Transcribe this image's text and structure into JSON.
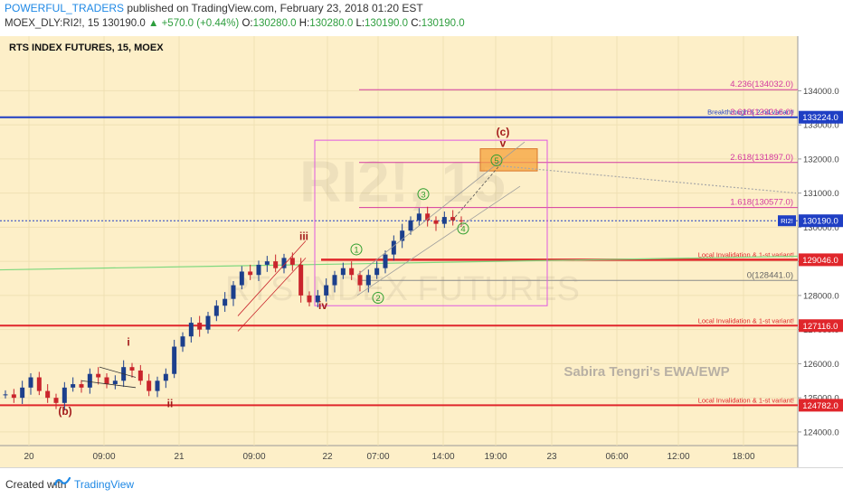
{
  "header": {
    "author": "POWERFUL_TRADERS",
    "published": "published on TradingView.com, February 23, 2018 01:20 EST",
    "symbol": "MOEX_DLY:RI2!, 15",
    "last": "130190.0",
    "change": "▲ +570.0 (+0.44%)",
    "o_label": "O:",
    "o_value": "130280.0",
    "h_label": "H:",
    "h_value": "130280.0",
    "l_label": "L:",
    "l_value": "130190.0",
    "c_label": "C:",
    "c_value": "130190.0"
  },
  "footer": {
    "created_with": "Created with",
    "brand": "TradingView"
  },
  "colors": {
    "background": "#fdefc8",
    "candle_up": "#1c3f8c",
    "candle_down": "#c9252c",
    "red_level": "#e0262b",
    "blue_level": "#1f3fc4",
    "fib_pink": "#d43aa0",
    "wave_green": "#2e9e2e",
    "wave_red": "#a31b1b",
    "box_orange": "#f6a23a"
  },
  "chart_data": {
    "type": "candlestick",
    "title": "RTS INDEX FUTURES, 15, MOEX",
    "watermark_symbol": "RI2!, 15",
    "watermark_name": "RTS INDEX FUTURES",
    "signature": "Sabira Tengri's EWA/EWP",
    "x_ticks": [
      "20",
      "09:00",
      "21",
      "09:00",
      "22",
      "07:00",
      "14:00",
      "19:00",
      "23",
      "06:00",
      "12:00",
      "18:00"
    ],
    "y_ticks": [
      "124000.0",
      "125000.0",
      "126000.0",
      "127000.0",
      "128000.0",
      "129000.0",
      "130000.0",
      "131000.0",
      "132000.0",
      "133000.0",
      "134000.0"
    ],
    "ylim": [
      123600,
      135600
    ],
    "price_tags": [
      {
        "text": "133224.0",
        "value": 133224,
        "color": "#1f3fc4"
      },
      {
        "text": "130190.0",
        "value": 130190,
        "color": "#1f3fc4"
      },
      {
        "text": "129046.0",
        "value": 129046,
        "color": "#e0262b"
      },
      {
        "text": "127116.0",
        "value": 127116,
        "color": "#e0262b"
      },
      {
        "text": "124782.0",
        "value": 124782,
        "color": "#e0262b"
      }
    ],
    "levels": [
      {
        "value": 133224,
        "label": "Breakthrough & 2-nd variant!"
      },
      {
        "value": 129046,
        "label": "Local Invalidation & 1-st variant!"
      },
      {
        "value": 127116,
        "label": "Local Invalidation & 1-st variant!"
      },
      {
        "value": 124782,
        "label": "Local Invalidation & 1-st variant!"
      }
    ],
    "current_price": {
      "value": 130190,
      "label": "RI2!"
    },
    "fib_levels": [
      {
        "label": "4.236(134032.0)",
        "value": 134032
      },
      {
        "label": "3.618(133216.0)",
        "value": 133216
      },
      {
        "label": "2.618(131897.0)",
        "value": 131897
      },
      {
        "label": "1.618(130577.0)",
        "value": 130577
      },
      {
        "label": "0(128441.0)",
        "value": 128441
      }
    ],
    "wave_labels": [
      {
        "text": "(b)",
        "color": "red"
      },
      {
        "text": "i",
        "color": "red"
      },
      {
        "text": "ii",
        "color": "red"
      },
      {
        "text": "iii",
        "color": "red"
      },
      {
        "text": "iv",
        "color": "red"
      },
      {
        "text": "v",
        "color": "red"
      },
      {
        "text": "(c)",
        "color": "red"
      },
      {
        "text": "1",
        "color": "green"
      },
      {
        "text": "2",
        "color": "green"
      },
      {
        "text": "3",
        "color": "green"
      },
      {
        "text": "4",
        "color": "green"
      },
      {
        "text": "5",
        "color": "green"
      }
    ],
    "price_path": [
      [
        0,
        125100
      ],
      [
        1,
        125000
      ],
      [
        2,
        125300
      ],
      [
        3,
        125600
      ],
      [
        4,
        125200
      ],
      [
        5,
        125000
      ],
      [
        6,
        124850
      ],
      [
        7,
        125300
      ],
      [
        8,
        125400
      ],
      [
        9,
        125300
      ],
      [
        10,
        125700
      ],
      [
        11,
        125600
      ],
      [
        12,
        125400
      ],
      [
        13,
        125500
      ],
      [
        14,
        125900
      ],
      [
        15,
        125800
      ],
      [
        16,
        125500
      ],
      [
        17,
        125200
      ],
      [
        18,
        125500
      ],
      [
        19,
        125700
      ],
      [
        20,
        126500
      ],
      [
        21,
        126800
      ],
      [
        22,
        127200
      ],
      [
        23,
        127000
      ],
      [
        24,
        127400
      ],
      [
        25,
        127700
      ],
      [
        26,
        127900
      ],
      [
        27,
        128300
      ],
      [
        28,
        128700
      ],
      [
        29,
        128600
      ],
      [
        30,
        128900
      ],
      [
        31,
        129000
      ],
      [
        32,
        128800
      ],
      [
        33,
        129100
      ],
      [
        34,
        128900
      ],
      [
        35,
        128000
      ],
      [
        36,
        127800
      ],
      [
        37,
        128000
      ],
      [
        38,
        128300
      ],
      [
        39,
        128600
      ],
      [
        40,
        128800
      ],
      [
        41,
        128600
      ],
      [
        42,
        128300
      ],
      [
        43,
        128600
      ],
      [
        44,
        128800
      ],
      [
        45,
        129200
      ],
      [
        46,
        129600
      ],
      [
        47,
        129900
      ],
      [
        48,
        130200
      ],
      [
        49,
        130400
      ],
      [
        50,
        130200
      ],
      [
        51,
        130100
      ],
      [
        52,
        130300
      ],
      [
        53,
        130200
      ],
      [
        54,
        130190
      ]
    ]
  }
}
